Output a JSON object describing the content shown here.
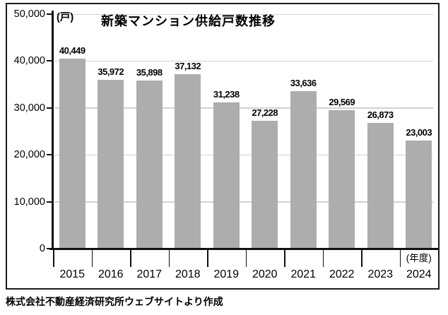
{
  "chart_data": {
    "type": "bar",
    "title": "新築マンション供給戸数推移",
    "unit_label": "(戸)",
    "xaxis_suffix": "(年度)",
    "categories": [
      "2015",
      "2016",
      "2017",
      "2018",
      "2019",
      "2020",
      "2021",
      "2022",
      "2023",
      "2024"
    ],
    "values": [
      40449,
      35972,
      35898,
      37132,
      31238,
      27228,
      33636,
      29569,
      26873,
      23003
    ],
    "value_labels": [
      "40,449",
      "35,972",
      "35,898",
      "37,132",
      "31,238",
      "27,228",
      "33,636",
      "29,569",
      "26,873",
      "23,003"
    ],
    "ylim": [
      0,
      50000
    ],
    "yticks": [
      {
        "value": 0,
        "label": "0"
      },
      {
        "value": 10000,
        "label": "10,000"
      },
      {
        "value": 20000,
        "label": "20,000"
      },
      {
        "value": 30000,
        "label": "30,000"
      },
      {
        "value": 40000,
        "label": "40,000"
      },
      {
        "value": 50000,
        "label": "50,000"
      }
    ],
    "grid": "horizontal",
    "legend": "none",
    "bar_color": "#adadad",
    "gridline_color": "#d2d2d2",
    "axis_color": "#111111"
  },
  "source_note": "株式会社不動産経済研究所ウェブサイトより作成"
}
